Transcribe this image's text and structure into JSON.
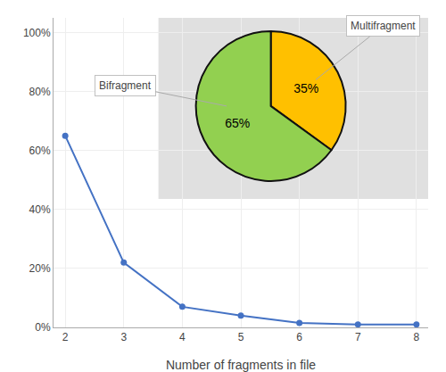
{
  "chart_data": [
    {
      "type": "line",
      "x": [
        2,
        3,
        4,
        5,
        6,
        7,
        8
      ],
      "values": [
        0.65,
        0.22,
        0.07,
        0.04,
        0.015,
        0.01,
        0.01
      ],
      "color": "#4472C4",
      "marker": "circle",
      "xlabel": "Number of fragments in file",
      "xlim": [
        1.8,
        8.2
      ],
      "ylim": [
        0,
        1.05
      ],
      "xticks": [
        2,
        3,
        4,
        5,
        6,
        7,
        8
      ],
      "yticks": [
        {
          "value": 0,
          "label": "0%"
        },
        {
          "value": 0.2,
          "label": "20%"
        },
        {
          "value": 0.4,
          "label": "40%"
        },
        {
          "value": 0.6,
          "label": "60%"
        },
        {
          "value": 0.8,
          "label": "80%"
        },
        {
          "value": 1.0,
          "label": "100%"
        }
      ],
      "grid": true
    },
    {
      "type": "pie",
      "categories": [
        "Multifragment",
        "Bifragment"
      ],
      "values": [
        35,
        65
      ],
      "value_labels": [
        "35%",
        "65%"
      ],
      "colors": [
        "#FFC000",
        "#92D050"
      ],
      "data_labels": true
    }
  ]
}
